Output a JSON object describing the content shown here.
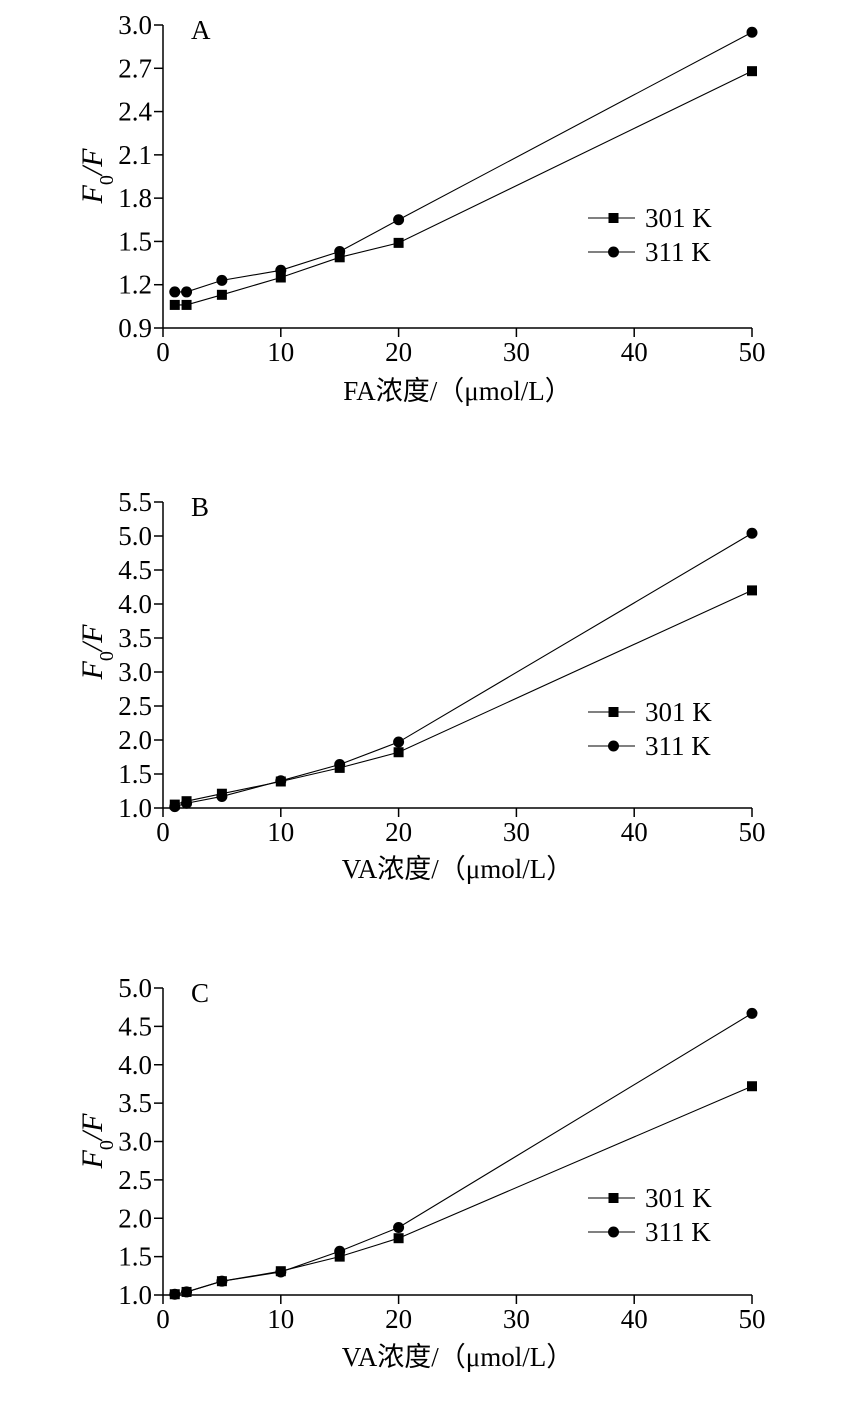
{
  "chart_data": [
    {
      "type": "line",
      "panel_label": "A",
      "ylabel": "F0/F",
      "xlabel": "FA浓度/（μmol/L）",
      "xlim": [
        0,
        50
      ],
      "ylim": [
        0.9,
        3.0
      ],
      "xticks": [
        "0",
        "10",
        "20",
        "30",
        "40",
        "50"
      ],
      "yticks": [
        "0.9",
        "1.2",
        "1.5",
        "1.8",
        "2.1",
        "2.4",
        "2.7",
        "3.0"
      ],
      "legend_position": "right",
      "x": [
        1,
        2,
        5,
        10,
        15,
        20,
        50
      ],
      "series": [
        {
          "name": "301 K",
          "marker": "square",
          "values": [
            1.06,
            1.06,
            1.13,
            1.25,
            1.39,
            1.49,
            2.68
          ]
        },
        {
          "name": "311 K",
          "marker": "circle",
          "values": [
            1.15,
            1.15,
            1.23,
            1.3,
            1.43,
            1.65,
            2.95
          ]
        }
      ]
    },
    {
      "type": "line",
      "panel_label": "B",
      "ylabel": "F0/F",
      "xlabel": "VA浓度/（μmol/L）",
      "xlim": [
        0,
        50
      ],
      "ylim": [
        1.0,
        5.5
      ],
      "xticks": [
        "0",
        "10",
        "20",
        "30",
        "40",
        "50"
      ],
      "yticks": [
        "1.0",
        "1.5",
        "2.0",
        "2.5",
        "3.0",
        "3.5",
        "4.0",
        "4.5",
        "5.0",
        "5.5"
      ],
      "legend_position": "right",
      "x": [
        1,
        2,
        5,
        10,
        15,
        20,
        50
      ],
      "series": [
        {
          "name": "301 K",
          "marker": "square",
          "values": [
            1.05,
            1.1,
            1.21,
            1.39,
            1.59,
            1.82,
            4.2
          ]
        },
        {
          "name": "311 K",
          "marker": "circle",
          "values": [
            1.02,
            1.07,
            1.17,
            1.4,
            1.64,
            1.97,
            5.04
          ]
        }
      ]
    },
    {
      "type": "line",
      "panel_label": "C",
      "ylabel": "F0/F",
      "xlabel": "VA浓度/（μmol/L）",
      "xlim": [
        0,
        50
      ],
      "ylim": [
        1.0,
        5.0
      ],
      "xticks": [
        "0",
        "10",
        "20",
        "30",
        "40",
        "50"
      ],
      "yticks": [
        "1.0",
        "1.5",
        "2.0",
        "2.5",
        "3.0",
        "3.5",
        "4.0",
        "4.5",
        "5.0"
      ],
      "legend_position": "right",
      "x": [
        1,
        2,
        5,
        10,
        15,
        20,
        50
      ],
      "series": [
        {
          "name": "301 K",
          "marker": "square",
          "values": [
            1.01,
            1.04,
            1.18,
            1.31,
            1.5,
            1.74,
            3.72
          ]
        },
        {
          "name": "311 K",
          "marker": "circle",
          "values": [
            1.01,
            1.04,
            1.18,
            1.3,
            1.57,
            1.88,
            4.67
          ]
        }
      ]
    }
  ]
}
